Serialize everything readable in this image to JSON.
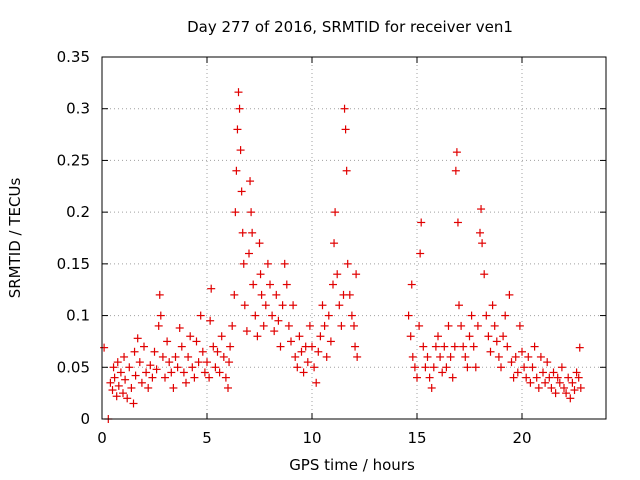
{
  "chart_data": {
    "type": "scatter",
    "title": "Day 277 of 2016, SRMTID for receiver ven1",
    "xlabel": "GPS time / hours",
    "ylabel": "SRMTID / TECUs",
    "xlim": [
      0,
      24
    ],
    "ylim": [
      0,
      0.35
    ],
    "x_ticks": [
      "0",
      "5",
      "10",
      "15",
      "20"
    ],
    "x_tick_values": [
      0,
      5,
      10,
      15,
      20
    ],
    "y_ticks": [
      "0",
      "0.05",
      "0.1",
      "0.15",
      "0.2",
      "0.25",
      "0.3",
      "0.35"
    ],
    "y_tick_values": [
      0,
      0.05,
      0.1,
      0.15,
      0.2,
      0.25,
      0.3,
      0.35
    ],
    "grid": true,
    "marker": "+",
    "color": "#e00000",
    "series": [
      {
        "name": "SRMTID",
        "points": [
          [
            0.1,
            0.069
          ],
          [
            0.3,
            0.0
          ],
          [
            0.4,
            0.035
          ],
          [
            0.5,
            0.028
          ],
          [
            0.55,
            0.05
          ],
          [
            0.6,
            0.04
          ],
          [
            0.7,
            0.022
          ],
          [
            0.75,
            0.055
          ],
          [
            0.8,
            0.032
          ],
          [
            0.9,
            0.045
          ],
          [
            1.0,
            0.025
          ],
          [
            1.05,
            0.06
          ],
          [
            1.1,
            0.038
          ],
          [
            1.2,
            0.02
          ],
          [
            1.3,
            0.05
          ],
          [
            1.4,
            0.03
          ],
          [
            1.5,
            0.015
          ],
          [
            1.55,
            0.065
          ],
          [
            1.6,
            0.042
          ],
          [
            1.7,
            0.078
          ],
          [
            1.8,
            0.055
          ],
          [
            1.9,
            0.035
          ],
          [
            2.0,
            0.07
          ],
          [
            2.1,
            0.045
          ],
          [
            2.2,
            0.03
          ],
          [
            2.3,
            0.052
          ],
          [
            2.4,
            0.04
          ],
          [
            2.5,
            0.065
          ],
          [
            2.6,
            0.048
          ],
          [
            2.7,
            0.09
          ],
          [
            2.75,
            0.12
          ],
          [
            2.8,
            0.1
          ],
          [
            2.9,
            0.06
          ],
          [
            3.0,
            0.04
          ],
          [
            3.1,
            0.075
          ],
          [
            3.2,
            0.055
          ],
          [
            3.3,
            0.045
          ],
          [
            3.4,
            0.03
          ],
          [
            3.5,
            0.06
          ],
          [
            3.6,
            0.05
          ],
          [
            3.7,
            0.088
          ],
          [
            3.8,
            0.07
          ],
          [
            3.9,
            0.045
          ],
          [
            4.0,
            0.035
          ],
          [
            4.1,
            0.06
          ],
          [
            4.2,
            0.08
          ],
          [
            4.3,
            0.05
          ],
          [
            4.4,
            0.04
          ],
          [
            4.5,
            0.075
          ],
          [
            4.6,
            0.055
          ],
          [
            4.7,
            0.1
          ],
          [
            4.8,
            0.065
          ],
          [
            4.9,
            0.045
          ],
          [
            5.0,
            0.055
          ],
          [
            5.1,
            0.04
          ],
          [
            5.15,
            0.095
          ],
          [
            5.2,
            0.126
          ],
          [
            5.3,
            0.07
          ],
          [
            5.4,
            0.05
          ],
          [
            5.5,
            0.065
          ],
          [
            5.6,
            0.045
          ],
          [
            5.7,
            0.08
          ],
          [
            5.8,
            0.06
          ],
          [
            5.9,
            0.04
          ],
          [
            6.0,
            0.03
          ],
          [
            6.05,
            0.055
          ],
          [
            6.1,
            0.07
          ],
          [
            6.2,
            0.09
          ],
          [
            6.3,
            0.12
          ],
          [
            6.35,
            0.2
          ],
          [
            6.4,
            0.24
          ],
          [
            6.45,
            0.28
          ],
          [
            6.5,
            0.316
          ],
          [
            6.55,
            0.3
          ],
          [
            6.6,
            0.26
          ],
          [
            6.65,
            0.22
          ],
          [
            6.7,
            0.18
          ],
          [
            6.75,
            0.15
          ],
          [
            6.8,
            0.11
          ],
          [
            6.9,
            0.085
          ],
          [
            7.0,
            0.16
          ],
          [
            7.05,
            0.23
          ],
          [
            7.1,
            0.2
          ],
          [
            7.15,
            0.18
          ],
          [
            7.2,
            0.13
          ],
          [
            7.3,
            0.1
          ],
          [
            7.4,
            0.08
          ],
          [
            7.5,
            0.17
          ],
          [
            7.55,
            0.14
          ],
          [
            7.6,
            0.12
          ],
          [
            7.7,
            0.09
          ],
          [
            7.8,
            0.11
          ],
          [
            7.9,
            0.15
          ],
          [
            8.0,
            0.13
          ],
          [
            8.1,
            0.1
          ],
          [
            8.2,
            0.085
          ],
          [
            8.3,
            0.12
          ],
          [
            8.4,
            0.095
          ],
          [
            8.5,
            0.07
          ],
          [
            8.6,
            0.11
          ],
          [
            8.7,
            0.15
          ],
          [
            8.8,
            0.13
          ],
          [
            8.9,
            0.09
          ],
          [
            9.0,
            0.075
          ],
          [
            9.1,
            0.11
          ],
          [
            9.2,
            0.06
          ],
          [
            9.3,
            0.05
          ],
          [
            9.4,
            0.08
          ],
          [
            9.5,
            0.065
          ],
          [
            9.6,
            0.045
          ],
          [
            9.7,
            0.07
          ],
          [
            9.8,
            0.055
          ],
          [
            9.9,
            0.09
          ],
          [
            10.0,
            0.07
          ],
          [
            10.1,
            0.05
          ],
          [
            10.2,
            0.035
          ],
          [
            10.3,
            0.065
          ],
          [
            10.4,
            0.08
          ],
          [
            10.5,
            0.11
          ],
          [
            10.6,
            0.09
          ],
          [
            10.7,
            0.06
          ],
          [
            10.8,
            0.1
          ],
          [
            10.9,
            0.075
          ],
          [
            11.0,
            0.13
          ],
          [
            11.05,
            0.17
          ],
          [
            11.1,
            0.2
          ],
          [
            11.2,
            0.14
          ],
          [
            11.3,
            0.11
          ],
          [
            11.4,
            0.09
          ],
          [
            11.5,
            0.12
          ],
          [
            11.55,
            0.3
          ],
          [
            11.6,
            0.28
          ],
          [
            11.65,
            0.24
          ],
          [
            11.7,
            0.15
          ],
          [
            11.8,
            0.12
          ],
          [
            11.9,
            0.1
          ],
          [
            12.0,
            0.09
          ],
          [
            12.05,
            0.07
          ],
          [
            12.1,
            0.14
          ],
          [
            12.15,
            0.06
          ],
          [
            14.6,
            0.1
          ],
          [
            14.7,
            0.08
          ],
          [
            14.75,
            0.13
          ],
          [
            14.8,
            0.06
          ],
          [
            14.9,
            0.05
          ],
          [
            15.0,
            0.04
          ],
          [
            15.1,
            0.09
          ],
          [
            15.15,
            0.16
          ],
          [
            15.2,
            0.19
          ],
          [
            15.3,
            0.07
          ],
          [
            15.4,
            0.05
          ],
          [
            15.5,
            0.06
          ],
          [
            15.6,
            0.04
          ],
          [
            15.7,
            0.03
          ],
          [
            15.8,
            0.05
          ],
          [
            15.9,
            0.07
          ],
          [
            16.0,
            0.08
          ],
          [
            16.1,
            0.06
          ],
          [
            16.2,
            0.045
          ],
          [
            16.3,
            0.07
          ],
          [
            16.4,
            0.05
          ],
          [
            16.5,
            0.09
          ],
          [
            16.6,
            0.06
          ],
          [
            16.7,
            0.04
          ],
          [
            16.8,
            0.07
          ],
          [
            16.85,
            0.24
          ],
          [
            16.9,
            0.258
          ],
          [
            16.95,
            0.19
          ],
          [
            17.0,
            0.11
          ],
          [
            17.1,
            0.09
          ],
          [
            17.2,
            0.07
          ],
          [
            17.3,
            0.06
          ],
          [
            17.4,
            0.05
          ],
          [
            17.5,
            0.08
          ],
          [
            17.6,
            0.1
          ],
          [
            17.7,
            0.07
          ],
          [
            17.8,
            0.05
          ],
          [
            17.9,
            0.09
          ],
          [
            18.0,
            0.18
          ],
          [
            18.05,
            0.203
          ],
          [
            18.1,
            0.17
          ],
          [
            18.2,
            0.14
          ],
          [
            18.3,
            0.1
          ],
          [
            18.4,
            0.08
          ],
          [
            18.5,
            0.065
          ],
          [
            18.6,
            0.11
          ],
          [
            18.7,
            0.09
          ],
          [
            18.8,
            0.075
          ],
          [
            18.9,
            0.06
          ],
          [
            19.0,
            0.05
          ],
          [
            19.1,
            0.08
          ],
          [
            19.2,
            0.1
          ],
          [
            19.3,
            0.07
          ],
          [
            19.4,
            0.12
          ],
          [
            19.5,
            0.055
          ],
          [
            19.6,
            0.04
          ],
          [
            19.7,
            0.06
          ],
          [
            19.8,
            0.045
          ],
          [
            19.9,
            0.09
          ],
          [
            20.0,
            0.065
          ],
          [
            20.1,
            0.05
          ],
          [
            20.2,
            0.04
          ],
          [
            20.3,
            0.06
          ],
          [
            20.4,
            0.035
          ],
          [
            20.5,
            0.05
          ],
          [
            20.6,
            0.07
          ],
          [
            20.7,
            0.04
          ],
          [
            20.8,
            0.03
          ],
          [
            20.9,
            0.06
          ],
          [
            21.0,
            0.045
          ],
          [
            21.1,
            0.035
          ],
          [
            21.2,
            0.055
          ],
          [
            21.3,
            0.04
          ],
          [
            21.4,
            0.03
          ],
          [
            21.5,
            0.045
          ],
          [
            21.6,
            0.025
          ],
          [
            21.7,
            0.04
          ],
          [
            21.8,
            0.035
          ],
          [
            21.9,
            0.05
          ],
          [
            22.0,
            0.03
          ],
          [
            22.1,
            0.025
          ],
          [
            22.2,
            0.04
          ],
          [
            22.3,
            0.02
          ],
          [
            22.4,
            0.035
          ],
          [
            22.5,
            0.028
          ],
          [
            22.6,
            0.045
          ],
          [
            22.7,
            0.04
          ],
          [
            22.75,
            0.069
          ],
          [
            22.8,
            0.03
          ]
        ]
      }
    ]
  }
}
